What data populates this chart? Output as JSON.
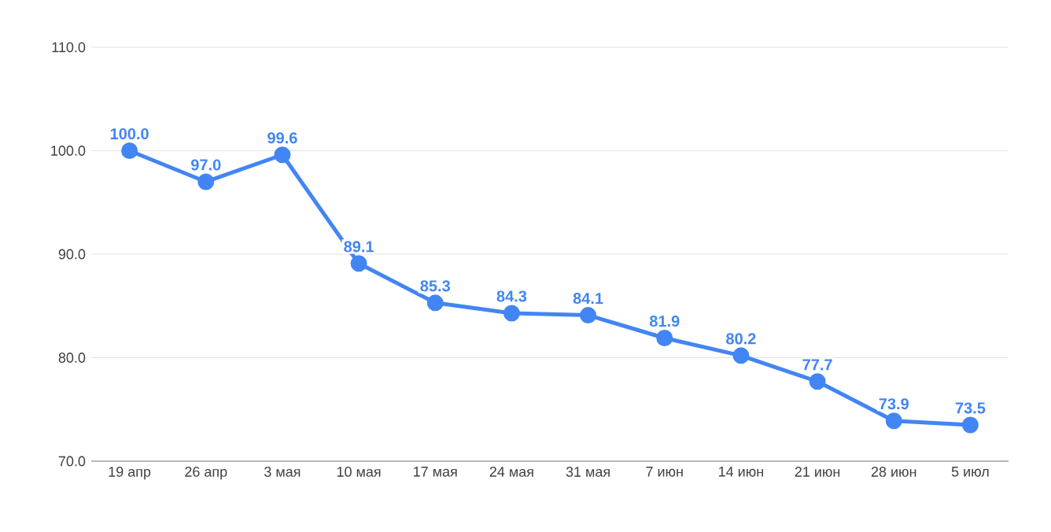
{
  "chart_data": {
    "type": "line",
    "categories": [
      "19 апр",
      "26 апр",
      "3 мая",
      "10 мая",
      "17 мая",
      "24 мая",
      "31 мая",
      "7 июн",
      "14 июн",
      "21 июн",
      "28 июн",
      "5 июл"
    ],
    "values": [
      100.0,
      97.0,
      99.6,
      89.1,
      85.3,
      84.3,
      84.1,
      81.9,
      80.2,
      77.7,
      73.9,
      73.5
    ],
    "value_labels": [
      "100.0",
      "97.0",
      "99.6",
      "89.1",
      "85.3",
      "84.3",
      "84.1",
      "81.9",
      "80.2",
      "77.7",
      "73.9",
      "73.5"
    ],
    "color": "#4285f4",
    "ylim": [
      70,
      110
    ],
    "yticks": [
      {
        "value": 70,
        "label": "70.0"
      },
      {
        "value": 80,
        "label": "80.0"
      },
      {
        "value": 90,
        "label": "90.0"
      },
      {
        "value": 100,
        "label": "100.0"
      },
      {
        "value": 110,
        "label": "110.0"
      }
    ],
    "grid": "y",
    "marker": "circle",
    "line_style": "solid"
  }
}
